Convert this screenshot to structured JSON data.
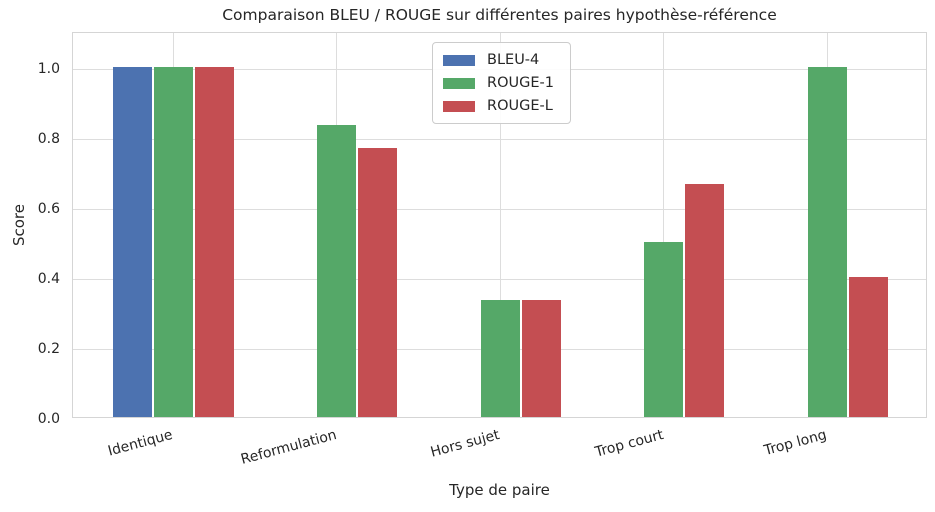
{
  "chart_data": {
    "type": "bar",
    "title": "Comparaison BLEU / ROUGE sur différentes paires hypothèse-référence",
    "xlabel": "Type de paire",
    "ylabel": "Score",
    "categories": [
      "Identique",
      "Reformulation",
      "Hors sujet",
      "Trop court",
      "Trop long"
    ],
    "series": [
      {
        "name": "BLEU-4",
        "color": "#4C72B0",
        "values": [
          1.0,
          0.0,
          0.0,
          0.0,
          0.0
        ]
      },
      {
        "name": "ROUGE-1",
        "color": "#55A868",
        "values": [
          1.0,
          0.833,
          0.333,
          0.5,
          1.0
        ]
      },
      {
        "name": "ROUGE-L",
        "color": "#C44E52",
        "values": [
          1.0,
          0.769,
          0.333,
          0.667,
          0.4
        ]
      }
    ],
    "yticks": [
      {
        "value": 0.0,
        "label": "0.0"
      },
      {
        "value": 0.2,
        "label": "0.2"
      },
      {
        "value": 0.4,
        "label": "0.4"
      },
      {
        "value": 0.6,
        "label": "0.6"
      },
      {
        "value": 0.8,
        "label": "0.8"
      },
      {
        "value": 1.0,
        "label": "1.0"
      }
    ],
    "ylim": [
      0,
      1.1
    ],
    "grid": true,
    "legend_position": "upper center",
    "x_tick_rotation_deg": 15
  },
  "colors": {
    "background": "#FFFFFF",
    "grid": "#DDDDDD",
    "spine": "#D5D5D5",
    "text": "#262626"
  }
}
